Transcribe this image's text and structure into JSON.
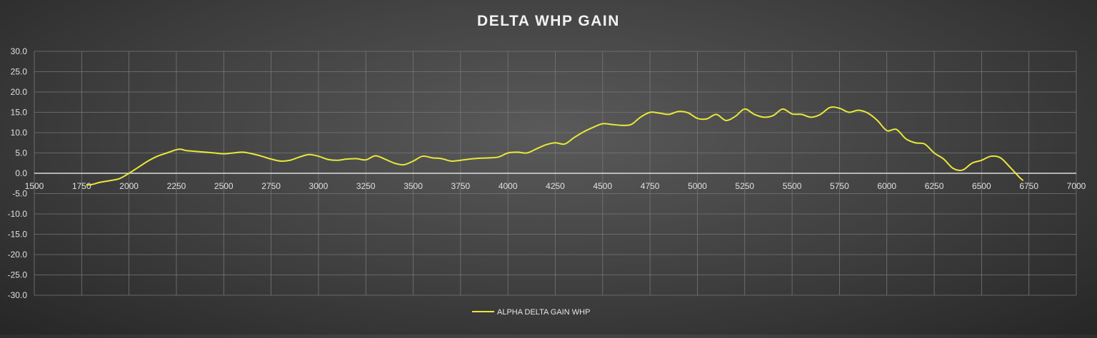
{
  "chart_data": {
    "type": "line",
    "title": "DELTA WHP GAIN",
    "xlabel": "",
    "ylabel": "",
    "xlim": [
      1500,
      7000
    ],
    "ylim": [
      -30,
      30
    ],
    "x_ticks": [
      1500,
      1750,
      2000,
      2250,
      2500,
      2750,
      3000,
      3250,
      3500,
      3750,
      4000,
      4250,
      4500,
      4750,
      5000,
      5250,
      5500,
      5750,
      6000,
      6250,
      6500,
      6750,
      7000
    ],
    "y_ticks": [
      30,
      25,
      20,
      15,
      10,
      5,
      0,
      -5,
      -10,
      -15,
      -20,
      -25,
      -30
    ],
    "x_tick_labels": [
      "1500",
      "1750",
      "2000",
      "2250",
      "2500",
      "2750",
      "3000",
      "3250",
      "3500",
      "3750",
      "4000",
      "4250",
      "4500",
      "4750",
      "5000",
      "5250",
      "5500",
      "5750",
      "6000",
      "6250",
      "6500",
      "6750",
      "7000"
    ],
    "y_tick_labels": [
      "30.0",
      "25.0",
      "20.0",
      "15.0",
      "10.0",
      "5.0",
      "0.0",
      "-5.0",
      "-10.0",
      "-15.0",
      "-20.0",
      "-25.0",
      "-30.0"
    ],
    "grid": true,
    "legend_position": "bottom-center",
    "series": [
      {
        "name": "ALPHA DELTA GAIN WHP",
        "color": "#e8e83a",
        "x": [
          1775,
          1800,
          1850,
          1900,
          1950,
          2000,
          2050,
          2100,
          2150,
          2200,
          2250,
          2275,
          2300,
          2350,
          2400,
          2450,
          2500,
          2550,
          2600,
          2650,
          2700,
          2750,
          2800,
          2850,
          2900,
          2950,
          3000,
          3050,
          3100,
          3150,
          3200,
          3250,
          3300,
          3350,
          3400,
          3450,
          3500,
          3550,
          3600,
          3650,
          3700,
          3750,
          3800,
          3850,
          3900,
          3950,
          4000,
          4050,
          4100,
          4150,
          4200,
          4250,
          4300,
          4350,
          4400,
          4450,
          4500,
          4550,
          4600,
          4650,
          4700,
          4750,
          4800,
          4850,
          4900,
          4950,
          5000,
          5050,
          5100,
          5150,
          5200,
          5250,
          5300,
          5350,
          5400,
          5450,
          5500,
          5550,
          5600,
          5650,
          5700,
          5750,
          5800,
          5850,
          5900,
          5950,
          6000,
          6050,
          6100,
          6150,
          6200,
          6250,
          6300,
          6350,
          6400,
          6450,
          6500,
          6550,
          6600,
          6650,
          6700,
          6720
        ],
        "y": [
          -2.8,
          -2.8,
          -2.2,
          -1.8,
          -1.3,
          0.0,
          1.5,
          3.0,
          4.2,
          5.0,
          5.8,
          5.9,
          5.6,
          5.4,
          5.2,
          5.0,
          4.8,
          5.0,
          5.2,
          4.8,
          4.2,
          3.5,
          3.0,
          3.2,
          4.0,
          4.6,
          4.2,
          3.4,
          3.2,
          3.5,
          3.6,
          3.3,
          4.3,
          3.5,
          2.5,
          2.1,
          3.0,
          4.2,
          3.8,
          3.6,
          3.0,
          3.2,
          3.5,
          3.7,
          3.8,
          4.0,
          5.0,
          5.2,
          5.0,
          6.0,
          7.0,
          7.5,
          7.2,
          8.8,
          10.2,
          11.3,
          12.2,
          12.0,
          11.8,
          12.0,
          13.8,
          15.0,
          14.8,
          14.5,
          15.2,
          14.9,
          13.5,
          13.4,
          14.5,
          13.0,
          14.0,
          15.8,
          14.5,
          13.8,
          14.2,
          15.8,
          14.6,
          14.5,
          13.8,
          14.5,
          16.2,
          16.0,
          15.0,
          15.5,
          14.8,
          13.0,
          10.5,
          10.8,
          8.5,
          7.5,
          7.2,
          5.0,
          3.5,
          1.2,
          0.8,
          2.5,
          3.2,
          4.2,
          3.8,
          1.5,
          -1.0,
          -1.8
        ]
      }
    ]
  }
}
